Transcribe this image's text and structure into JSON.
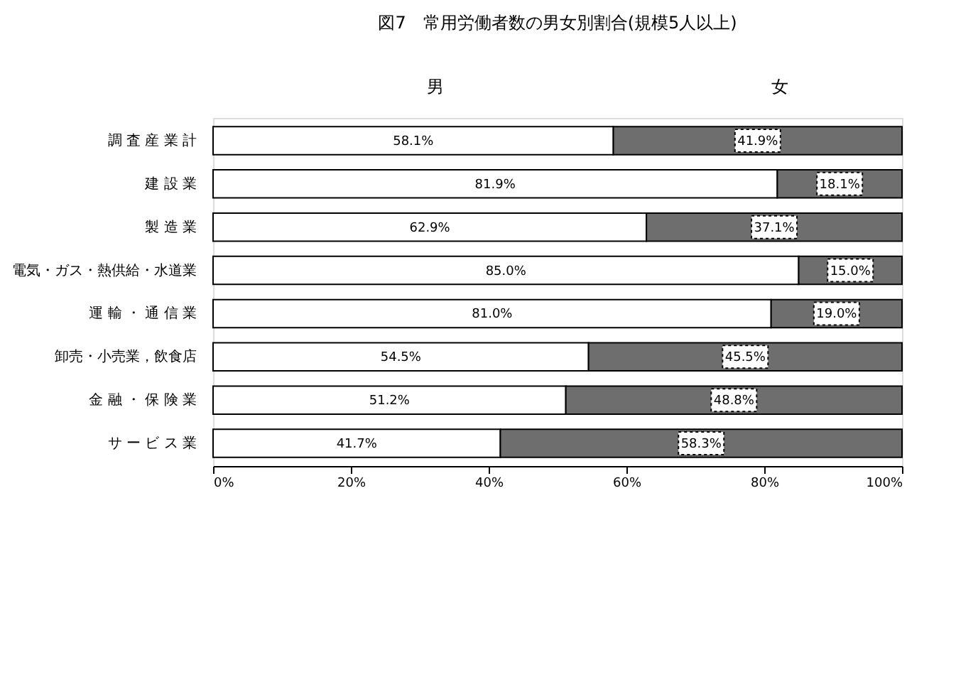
{
  "chart_data": {
    "type": "bar",
    "orientation": "horizontal",
    "stacked": true,
    "title": "図7　常用労働者数の男女別割合(規模5人以上)",
    "categories": [
      "調 査 産 業 計",
      "建 設 業",
      "製 造 業",
      "電気・ガス・熱供給・水道業",
      "運 輸 ・ 通 信 業",
      "卸売・小売業，飲食店",
      "金 融 ・ 保 険 業",
      "サ ー ビ ス 業"
    ],
    "series": [
      {
        "name": "男",
        "color": "#ffffff",
        "values": [
          58.1,
          81.9,
          62.9,
          85.0,
          81.0,
          54.5,
          51.2,
          41.7
        ],
        "value_labels": [
          "58.1%",
          "81.9%",
          "62.9%",
          "85.0%",
          "81.0%",
          "54.5%",
          "51.2%",
          "41.7%"
        ]
      },
      {
        "name": "女",
        "color": "#6e6e6e",
        "values": [
          41.9,
          18.1,
          37.1,
          15.0,
          19.0,
          45.5,
          48.8,
          58.3
        ],
        "value_labels": [
          "41.9%",
          "18.1%",
          "37.1%",
          "15.0%",
          "19.0%",
          "45.5%",
          "48.8%",
          "58.3%"
        ]
      }
    ],
    "xlim": [
      0,
      100
    ],
    "xticks": [
      {
        "value": 0,
        "label": "0%"
      },
      {
        "value": 20,
        "label": "20%"
      },
      {
        "value": 40,
        "label": "40%"
      },
      {
        "value": 60,
        "label": "60%"
      },
      {
        "value": 80,
        "label": "80%"
      },
      {
        "value": 100,
        "label": "100%"
      }
    ],
    "legend": "top",
    "grid": false
  }
}
